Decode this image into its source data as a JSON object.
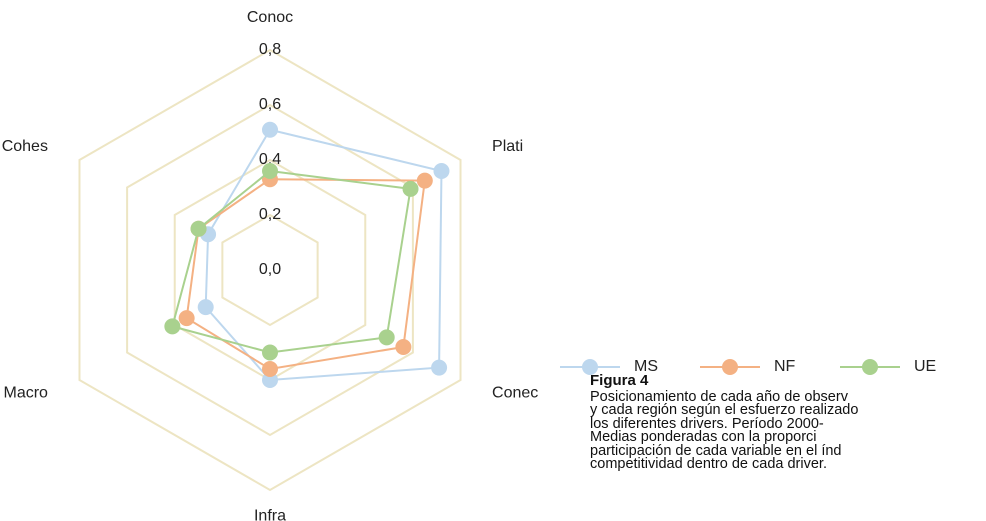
{
  "chart_data": {
    "type": "radar",
    "categories": [
      "Conoc",
      "Plati",
      "Conec",
      "Infra",
      "Macro",
      "Cohes"
    ],
    "series": [
      {
        "name": "MS",
        "color": "#bdd7ee",
        "values": [
          0.51,
          0.72,
          0.71,
          0.4,
          0.27,
          0.26
        ]
      },
      {
        "name": "NF",
        "color": "#f4b183",
        "values": [
          0.33,
          0.65,
          0.56,
          0.36,
          0.35,
          0.3
        ]
      },
      {
        "name": "UE",
        "color": "#a9d18e",
        "values": [
          0.36,
          0.59,
          0.49,
          0.3,
          0.41,
          0.3
        ]
      }
    ],
    "rlim": [
      0,
      0.8
    ],
    "rticks": [
      {
        "value": 0,
        "label": "0,0"
      },
      {
        "value": 0.2,
        "label": "0,2"
      },
      {
        "value": 0.4,
        "label": "0,4"
      },
      {
        "value": 0.6,
        "label": "0,6"
      },
      {
        "value": 0.8,
        "label": "0,8"
      }
    ],
    "grid": true,
    "grid_color": "#ede5c3"
  },
  "caption": {
    "title": "Figura 4",
    "lines": [
      "Posicionamiento de cada año de observ",
      "y cada región según el esfuerzo realizado",
      "los diferentes drivers. Período 2000-",
      "Medias ponderadas con la proporci",
      "participación de cada variable en el índ",
      "competitividad dentro de cada driver."
    ]
  }
}
